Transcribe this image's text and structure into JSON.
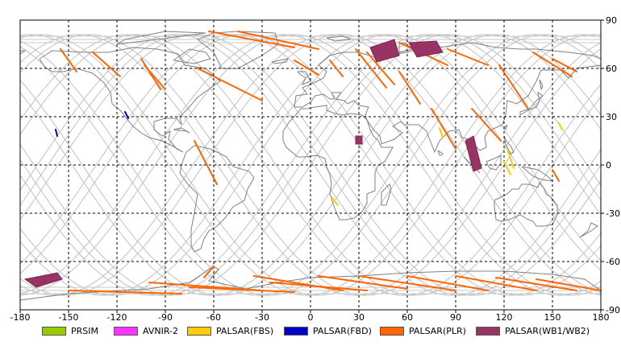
{
  "chart_data": {
    "type": "map",
    "x_ticks": [
      -180,
      -150,
      -120,
      -90,
      -60,
      -30,
      0,
      30,
      60,
      90,
      120,
      150,
      180
    ],
    "y_ticks": [
      90,
      60,
      30,
      0,
      -30,
      -60,
      -90
    ],
    "xlim": [
      -180,
      180
    ],
    "ylim": [
      -90,
      90
    ],
    "grid": true,
    "legend_placement": "bottom",
    "legend": [
      {
        "label": "PRSIM",
        "color": "#99cc00"
      },
      {
        "label": "AVNIR-2",
        "color": "#ff33ff"
      },
      {
        "label": "PALSAR(FBS)",
        "color": "#ffcc00"
      },
      {
        "label": "PALSAR(FBD)",
        "color": "#0000cc"
      },
      {
        "label": "PALSAR(PLR)",
        "color": "#ff6600"
      },
      {
        "label": "PALSAR(WB1/WB2)",
        "color": "#993366"
      }
    ],
    "wb_regions": [
      {
        "lonlat": [
          [
            37,
            73
          ],
          [
            52,
            78
          ],
          [
            55,
            68
          ],
          [
            41,
            64
          ]
        ]
      },
      {
        "lonlat": [
          [
            61,
            76
          ],
          [
            78,
            77
          ],
          [
            82,
            70
          ],
          [
            66,
            67
          ]
        ]
      },
      {
        "lonlat": [
          [
            96,
            15
          ],
          [
            101,
            18
          ],
          [
            106,
            -2
          ],
          [
            101,
            -4
          ]
        ]
      },
      {
        "lonlat": [
          [
            28,
            18
          ],
          [
            32,
            18
          ],
          [
            32,
            13
          ],
          [
            28,
            13
          ]
        ]
      },
      {
        "lonlat": [
          [
            -177,
            -71
          ],
          [
            -157,
            -67
          ],
          [
            -154,
            -71
          ],
          [
            -170,
            -76
          ]
        ]
      }
    ],
    "plr_strips": [
      {
        "start": [
          -63,
          83
        ],
        "end": [
          -10,
          73
        ]
      },
      {
        "start": [
          -45,
          83
        ],
        "end": [
          5,
          72
        ]
      },
      {
        "start": [
          -70,
          60
        ],
        "end": [
          -30,
          40
        ]
      },
      {
        "start": [
          -155,
          72
        ],
        "end": [
          -145,
          58
        ]
      },
      {
        "start": [
          -135,
          70
        ],
        "end": [
          -118,
          55
        ]
      },
      {
        "start": [
          -105,
          66
        ],
        "end": [
          -93,
          47
        ]
      },
      {
        "start": [
          -103,
          62
        ],
        "end": [
          -90,
          47
        ]
      },
      {
        "start": [
          -72,
          15
        ],
        "end": [
          -58,
          -12
        ]
      },
      {
        "start": [
          -10,
          65
        ],
        "end": [
          5,
          56
        ]
      },
      {
        "start": [
          12,
          65
        ],
        "end": [
          20,
          55
        ]
      },
      {
        "start": [
          28,
          72
        ],
        "end": [
          47,
          48
        ]
      },
      {
        "start": [
          35,
          70
        ],
        "end": [
          52,
          50
        ]
      },
      {
        "start": [
          55,
          58
        ],
        "end": [
          68,
          38
        ]
      },
      {
        "start": [
          55,
          76
        ],
        "end": [
          85,
          62
        ]
      },
      {
        "start": [
          75,
          35
        ],
        "end": [
          90,
          10
        ]
      },
      {
        "start": [
          85,
          72
        ],
        "end": [
          110,
          62
        ]
      },
      {
        "start": [
          100,
          35
        ],
        "end": [
          118,
          15
        ]
      },
      {
        "start": [
          117,
          62
        ],
        "end": [
          135,
          35
        ]
      },
      {
        "start": [
          138,
          70
        ],
        "end": [
          162,
          55
        ]
      },
      {
        "start": [
          150,
          66
        ],
        "end": [
          165,
          58
        ]
      },
      {
        "start": [
          150,
          -3
        ],
        "end": [
          154,
          -10
        ]
      },
      {
        "start": [
          -60,
          -63
        ],
        "end": [
          -66,
          -70
        ]
      },
      {
        "start": [
          -150,
          -78
        ],
        "end": [
          -80,
          -80
        ]
      },
      {
        "start": [
          -100,
          -73
        ],
        "end": [
          -30,
          -78
        ]
      },
      {
        "start": [
          -75,
          -76
        ],
        "end": [
          -10,
          -79
        ]
      },
      {
        "start": [
          -35,
          -69
        ],
        "end": [
          20,
          -78
        ]
      },
      {
        "start": [
          -25,
          -73
        ],
        "end": [
          35,
          -78
        ]
      },
      {
        "start": [
          5,
          -69
        ],
        "end": [
          60,
          -77
        ]
      },
      {
        "start": [
          30,
          -69
        ],
        "end": [
          90,
          -78
        ]
      },
      {
        "start": [
          60,
          -69
        ],
        "end": [
          110,
          -78
        ]
      },
      {
        "start": [
          90,
          -69
        ],
        "end": [
          140,
          -78
        ]
      },
      {
        "start": [
          115,
          -70
        ],
        "end": [
          165,
          -78
        ]
      },
      {
        "start": [
          140,
          -71
        ],
        "end": [
          180,
          -78
        ]
      }
    ],
    "fbs_strips": [
      {
        "start": [
          80,
          23
        ],
        "end": [
          82,
          17
        ]
      },
      {
        "start": [
          120,
          2
        ],
        "end": [
          124,
          -6
        ]
      },
      {
        "start": [
          122,
          10
        ],
        "end": [
          126,
          -2
        ]
      },
      {
        "start": [
          13,
          -20
        ],
        "end": [
          17,
          -25
        ]
      },
      {
        "start": [
          154,
          26
        ],
        "end": [
          156,
          22
        ]
      }
    ],
    "fbd_strips": [
      {
        "start": [
          -158,
          22
        ],
        "end": [
          -157,
          18
        ]
      },
      {
        "start": [
          -115,
          33
        ],
        "end": [
          -113,
          29
        ]
      }
    ]
  }
}
